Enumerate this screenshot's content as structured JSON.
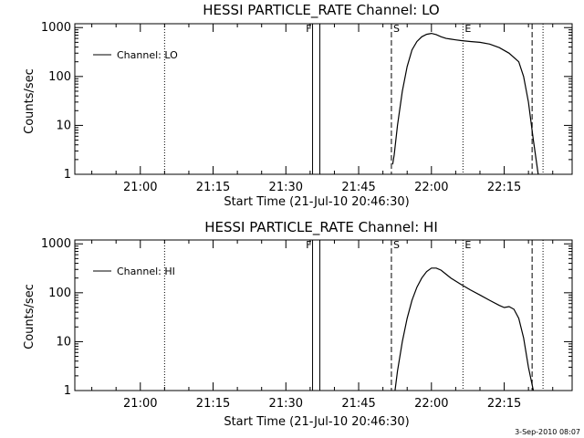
{
  "footer_timestamp": "3-Sep-2010 08:07",
  "colors": {
    "background": "#ffffff",
    "foreground": "#000000"
  },
  "chart_data": [
    {
      "type": "line",
      "title": "HESSI PARTICLE_RATE Channel: LO",
      "xlabel": "Start Time (21-Jul-10 20:46:30)",
      "ylabel": "Counts/sec",
      "yscale": "log",
      "ylim": [
        1,
        1200
      ],
      "xlim": [
        "20:46:30",
        "22:29:00"
      ],
      "xticks": [
        "21:00",
        "21:15",
        "21:30",
        "21:45",
        "22:00",
        "22:15"
      ],
      "yticks": [
        "1",
        "10",
        "100",
        "1000"
      ],
      "legend": {
        "location": "upper-left",
        "entries": [
          "Channel: LO"
        ]
      },
      "series": [
        {
          "name": "Channel: LO",
          "x": [
            "21:52:00",
            "21:52:20",
            "21:53:00",
            "21:54:00",
            "21:55:00",
            "21:56:00",
            "21:57:00",
            "21:58:00",
            "21:59:00",
            "22:00:00",
            "22:01:00",
            "22:02:00",
            "22:03:00",
            "22:04:00",
            "22:05:00",
            "22:06:00",
            "22:08:00",
            "22:10:00",
            "22:12:00",
            "22:14:00",
            "22:16:00",
            "22:18:00",
            "22:19:00",
            "22:20:00",
            "22:21:00",
            "22:22:00"
          ],
          "y": [
            1.6,
            2.5,
            10,
            50,
            160,
            350,
            520,
            650,
            730,
            760,
            720,
            650,
            600,
            580,
            560,
            545,
            520,
            500,
            460,
            390,
            300,
            200,
            100,
            30,
            5,
            1
          ]
        }
      ],
      "markers": [
        {
          "kind": "dotted-line",
          "x": "21:05:00"
        },
        {
          "kind": "solid-band",
          "x": [
            "21:35:30",
            "21:37:00"
          ],
          "label": "F"
        },
        {
          "kind": "dashed-line",
          "x": "21:51:45",
          "label": "S"
        },
        {
          "kind": "dotted-line",
          "x": "22:06:30",
          "label": "E"
        },
        {
          "kind": "dashed-line",
          "x": "22:20:45"
        },
        {
          "kind": "dotted-line",
          "x": "22:23:00"
        }
      ]
    },
    {
      "type": "line",
      "title": "HESSI PARTICLE_RATE Channel: HI",
      "xlabel": "Start Time (21-Jul-10 20:46:30)",
      "ylabel": "Counts/sec",
      "yscale": "log",
      "ylim": [
        1,
        1200
      ],
      "xlim": [
        "20:46:30",
        "22:29:00"
      ],
      "xticks": [
        "21:00",
        "21:15",
        "21:30",
        "21:45",
        "22:00",
        "22:15"
      ],
      "yticks": [
        "1",
        "10",
        "100",
        "1000"
      ],
      "legend": {
        "location": "upper-left",
        "entries": [
          "Channel: HI"
        ]
      },
      "series": [
        {
          "name": "Channel: HI",
          "x": [
            "21:52:30",
            "21:53:00",
            "21:54:00",
            "21:55:00",
            "21:56:00",
            "21:57:00",
            "21:58:00",
            "21:59:00",
            "22:00:00",
            "22:01:00",
            "22:02:00",
            "22:03:00",
            "22:04:00",
            "22:06:00",
            "22:08:00",
            "22:10:00",
            "22:12:00",
            "22:14:00",
            "22:15:00",
            "22:16:00",
            "22:17:00",
            "22:18:00",
            "22:19:00",
            "22:20:00",
            "22:21:00"
          ],
          "y": [
            1,
            2.5,
            10,
            30,
            70,
            130,
            200,
            270,
            320,
            320,
            290,
            240,
            200,
            150,
            115,
            90,
            70,
            55,
            50,
            52,
            46,
            30,
            12,
            3,
            1
          ]
        }
      ],
      "markers": [
        {
          "kind": "dotted-line",
          "x": "21:05:00"
        },
        {
          "kind": "solid-band",
          "x": [
            "21:35:30",
            "21:37:00"
          ],
          "label": "F"
        },
        {
          "kind": "dashed-line",
          "x": "21:51:45",
          "label": "S"
        },
        {
          "kind": "dotted-line",
          "x": "22:06:30",
          "label": "E"
        },
        {
          "kind": "dashed-line",
          "x": "22:20:45"
        },
        {
          "kind": "dotted-line",
          "x": "22:23:00"
        }
      ]
    }
  ]
}
